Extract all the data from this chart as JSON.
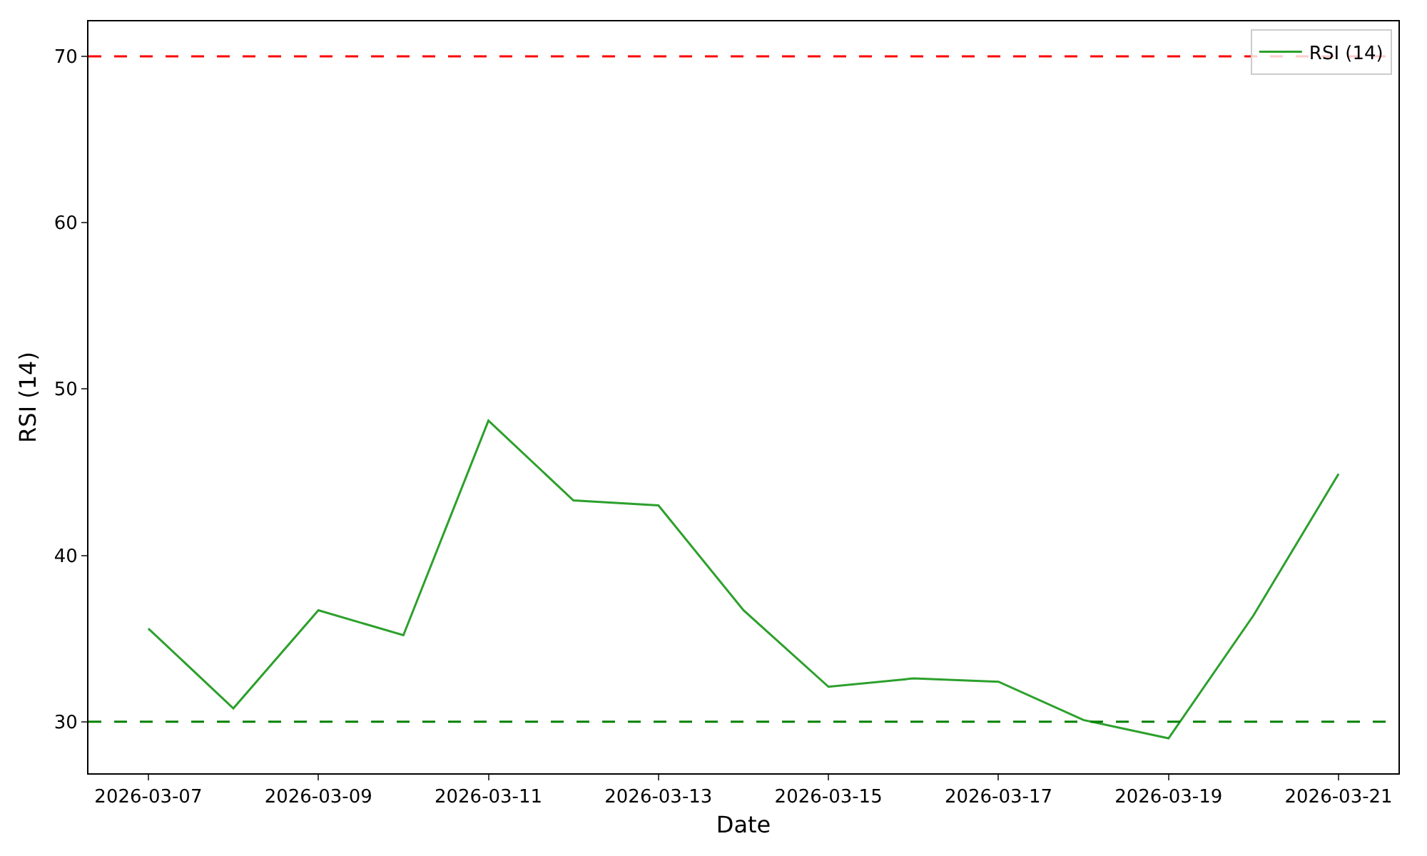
{
  "chart_data": {
    "type": "line",
    "xlabel": "Date",
    "ylabel": "RSI (14)",
    "x": [
      "2026-03-07",
      "2026-03-08",
      "2026-03-09",
      "2026-03-10",
      "2026-03-11",
      "2026-03-12",
      "2026-03-13",
      "2026-03-14",
      "2026-03-15",
      "2026-03-16",
      "2026-03-17",
      "2026-03-18",
      "2026-03-19",
      "2026-03-20",
      "2026-03-21"
    ],
    "series": [
      {
        "name": "RSI (14)",
        "color": "#2ca02c",
        "values": [
          35.6,
          30.8,
          36.7,
          35.2,
          48.1,
          43.3,
          43.0,
          36.7,
          32.1,
          32.6,
          32.4,
          30.1,
          29.0,
          36.4,
          44.9
        ]
      }
    ],
    "xlim": [
      "2026-03-06T07:06",
      "2026-03-21T16:54"
    ],
    "xticks": [
      {
        "value": "2026-03-07",
        "label": "2026-03-07"
      },
      {
        "value": "2026-03-09",
        "label": "2026-03-09"
      },
      {
        "value": "2026-03-11",
        "label": "2026-03-11"
      },
      {
        "value": "2026-03-13",
        "label": "2026-03-13"
      },
      {
        "value": "2026-03-15",
        "label": "2026-03-15"
      },
      {
        "value": "2026-03-17",
        "label": "2026-03-17"
      },
      {
        "value": "2026-03-19",
        "label": "2026-03-19"
      },
      {
        "value": "2026-03-21",
        "label": "2026-03-21"
      }
    ],
    "ylim": [
      26.9,
      72.1
    ],
    "yticks": [
      30,
      40,
      50,
      60,
      70
    ],
    "ref_lines": [
      {
        "axis": "y",
        "value": 70,
        "color": "#ff0000",
        "line_style": "dashed"
      },
      {
        "axis": "y",
        "value": 30,
        "color": "#008000",
        "line_style": "dashed"
      }
    ],
    "grid": false,
    "legend": "top right",
    "line_style": "solid",
    "marker": "none"
  }
}
